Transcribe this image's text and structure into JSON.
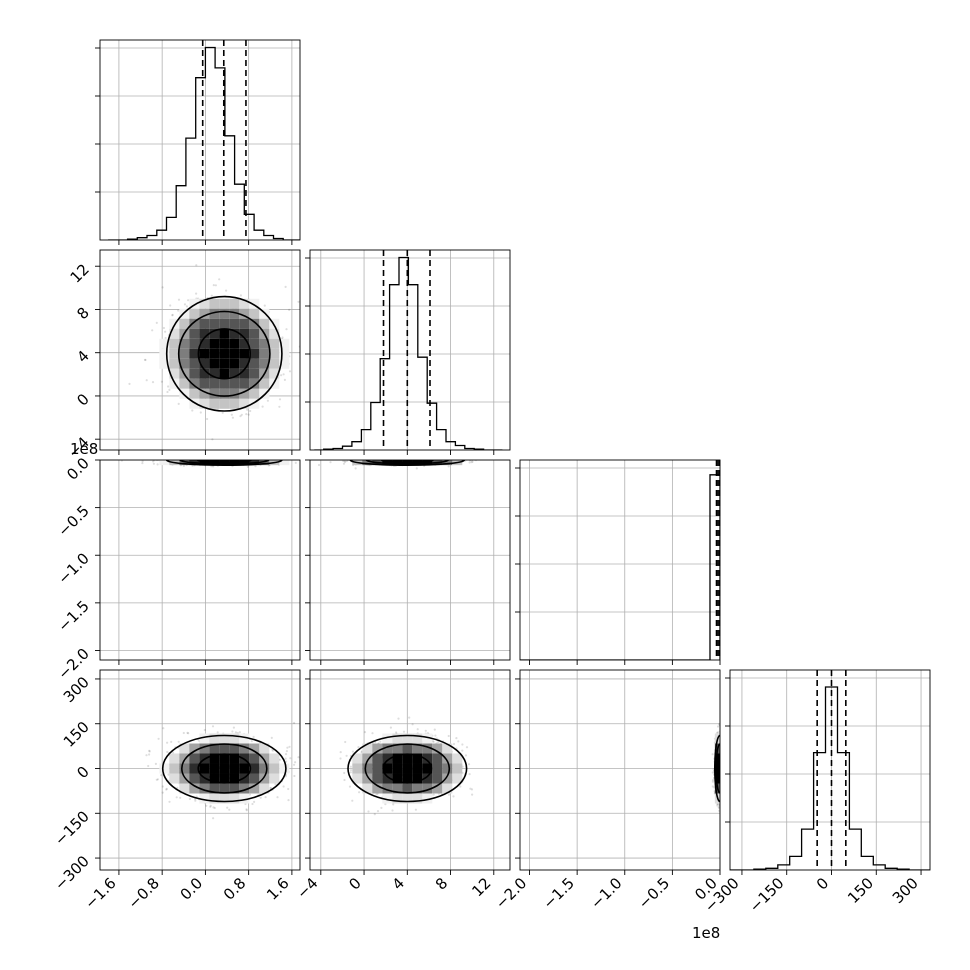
{
  "chart_data": {
    "type": "corner",
    "parameters": [
      {
        "range": [
          -1.95,
          1.75
        ],
        "ticks": [
          -1.6,
          -0.8,
          0.0,
          0.8,
          1.6
        ],
        "tick_labels": [
          "−1.6",
          "−0.8",
          "0.0",
          "0.8",
          "1.6"
        ],
        "offset": ""
      },
      {
        "range": [
          -5,
          13.5
        ],
        "ticks": [
          -4,
          0,
          4,
          8,
          12
        ],
        "tick_labels": [
          "−4",
          "0",
          "4",
          "8",
          "12"
        ],
        "offset": ""
      },
      {
        "range": [
          -2.1,
          0.0
        ],
        "ticks": [
          -2.0,
          -1.5,
          -1.0,
          -0.5,
          0.0
        ],
        "tick_labels": [
          "−2.0",
          "−1.5",
          "−1.0",
          "−0.5",
          "0.0"
        ],
        "offset": "1e8"
      },
      {
        "range": [
          -340,
          330
        ],
        "ticks": [
          -300,
          -150,
          0,
          150,
          300
        ],
        "tick_labels": [
          "−300",
          "−150",
          "0",
          "150",
          "300"
        ],
        "offset": ""
      }
    ],
    "histograms": [
      {
        "param": 0,
        "edges": [
          -1.8,
          1.8
        ],
        "counts": [
          0,
          0,
          1,
          3,
          6,
          13,
          30,
          72,
          135,
          215,
          255,
          228,
          138,
          74,
          34,
          13,
          6,
          2,
          0,
          0
        ],
        "quantiles": [
          -0.05,
          0.34,
          0.75
        ],
        "ymax": 265
      },
      {
        "param": 1,
        "edges": [
          -4.6,
          12.8
        ],
        "counts": [
          0,
          1,
          2,
          5,
          11,
          27,
          63,
          121,
          219,
          255,
          219,
          123,
          62,
          27,
          11,
          6,
          2,
          1,
          0,
          0
        ],
        "quantiles": [
          1.8,
          4.0,
          6.1
        ],
        "ymax": 265
      },
      {
        "param": 2,
        "edges": [
          -2.1,
          0.0
        ],
        "counts": [
          0,
          0,
          0,
          0,
          0,
          0,
          0,
          0,
          0,
          0,
          0,
          0,
          0,
          0,
          0,
          0,
          0,
          0,
          0,
          1
        ],
        "quantiles": [
          -0.002,
          -0.0015,
          -0.001
        ],
        "ymax": 1.08
      },
      {
        "param": 3,
        "edges": [
          -340,
          340
        ],
        "counts": [
          0,
          0,
          1,
          2,
          6,
          16,
          48,
          138,
          215,
          138,
          48,
          16,
          6,
          2,
          1,
          0,
          0
        ],
        "quantiles": [
          -48,
          0,
          48
        ],
        "ymax": 235
      }
    ],
    "pairs": [
      {
        "row": 1,
        "col": 0,
        "center": [
          0.35,
          3.9
        ],
        "sd": [
          0.48,
          2.3
        ],
        "rho": 0,
        "contours": [
          1.0,
          1.7,
          2.3
        ]
      },
      {
        "row": 2,
        "col": 0,
        "center": [
          0.35,
          -0.0015
        ],
        "sd": [
          0.48,
          0.004
        ],
        "rho": 0,
        "contours": [
          1.0,
          1.7,
          2.3
        ]
      },
      {
        "row": 2,
        "col": 1,
        "center": [
          4.0,
          -0.0015
        ],
        "sd": [
          2.3,
          0.004
        ],
        "rho": 0,
        "contours": [
          1.0,
          1.7,
          2.3
        ]
      },
      {
        "row": 3,
        "col": 0,
        "center": [
          0.35,
          0
        ],
        "sd": [
          0.48,
          48
        ],
        "rho": 0,
        "contours": [
          1.0,
          1.7,
          2.3
        ]
      },
      {
        "row": 3,
        "col": 1,
        "center": [
          4.0,
          0
        ],
        "sd": [
          2.3,
          48
        ],
        "rho": 0,
        "contours": [
          1.0,
          1.7,
          2.3
        ]
      },
      {
        "row": 3,
        "col": 2,
        "center": [
          -0.0015,
          0
        ],
        "sd": [
          0.004,
          48
        ],
        "rho": 0,
        "contours": [
          1.0,
          1.7,
          2.3
        ]
      }
    ],
    "grid": true,
    "xlabel": "",
    "ylabel": "",
    "title": ""
  }
}
